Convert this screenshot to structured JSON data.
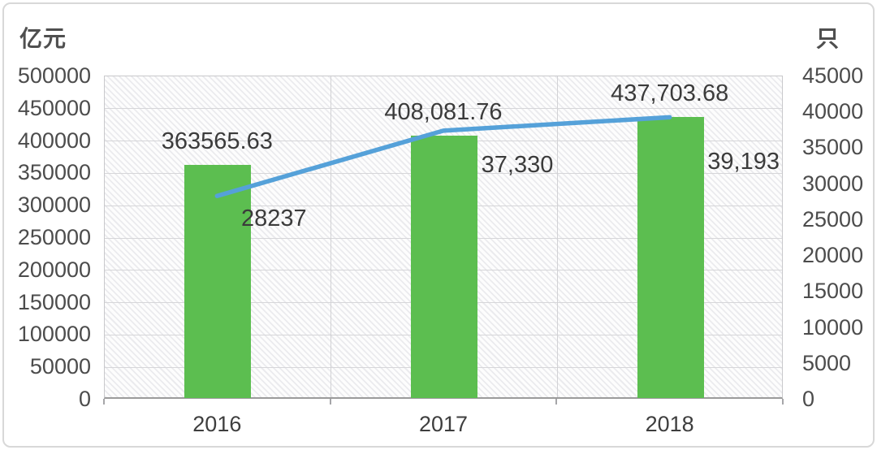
{
  "chart_data": {
    "type": "bar+line",
    "title": "",
    "categories": [
      "2016",
      "2017",
      "2018"
    ],
    "series": [
      {
        "name": "bar-series",
        "type": "bar",
        "axis": "left",
        "color": "#5cbe50",
        "values": [
          363565.63,
          408081.76,
          437703.68
        ],
        "labels": [
          "363565.63",
          "408,081.76",
          "437,703.68"
        ]
      },
      {
        "name": "line-series",
        "type": "line",
        "axis": "right",
        "color": "#55a1d9",
        "values": [
          28237,
          37330,
          39193
        ],
        "labels": [
          "28237",
          "37,330",
          "39,193"
        ]
      }
    ],
    "left_axis": {
      "title": "亿元",
      "min": 0,
      "max": 500000,
      "step": 50000,
      "tick_labels": [
        "500000",
        "450000",
        "400000",
        "350000",
        "300000",
        "250000",
        "200000",
        "150000",
        "100000",
        "50000",
        "0"
      ]
    },
    "right_axis": {
      "title": "只",
      "min": 0,
      "max": 45000,
      "step": 5000,
      "tick_labels": [
        "45000",
        "40000",
        "35000",
        "30000",
        "25000",
        "20000",
        "15000",
        "10000",
        "5000",
        "0"
      ]
    },
    "grid": true,
    "legend_position": "none"
  },
  "colors": {
    "bar": "#5cbe50",
    "line": "#55a1d9",
    "grid_h": "#d6d6d9",
    "grid_v": "#d2d2d5",
    "axis_line": "#9b9b9b",
    "tick_text": "#4c4c4c",
    "value_text": "#3b3b3b",
    "frame_border": "#d8d8d8"
  }
}
